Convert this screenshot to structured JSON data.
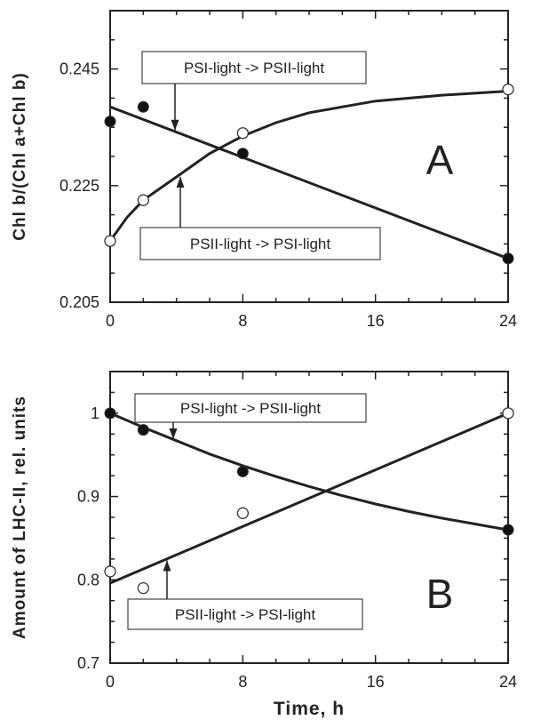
{
  "chart_data": [
    {
      "type": "scatter",
      "panel_label": "A",
      "xlabel": "",
      "ylabel": "Chl b/(Chl a+Chl b)",
      "xlim": [
        0,
        24
      ],
      "ylim": [
        0.205,
        0.255
      ],
      "x_ticks": [
        "0",
        "8",
        "16",
        "24"
      ],
      "y_ticks": [
        "0.205",
        "0.225",
        "0.245"
      ],
      "series": [
        {
          "name": "PSI-light -> PSII-light",
          "marker": "filled",
          "x": [
            0,
            2,
            8,
            24
          ],
          "y": [
            0.236,
            0.2385,
            0.2305,
            0.2125
          ],
          "fit_x": [
            0,
            24
          ],
          "fit_y": [
            0.2385,
            0.2125
          ]
        },
        {
          "name": "PSII-light -> PSI-light",
          "marker": "open",
          "x": [
            0,
            2,
            8,
            24
          ],
          "y": [
            0.2155,
            0.2225,
            0.234,
            0.2415
          ],
          "fit_x": [
            0,
            1,
            2,
            4,
            6,
            8,
            10,
            12,
            16,
            20,
            24
          ],
          "fit_y": [
            0.2155,
            0.2195,
            0.2225,
            0.2265,
            0.2305,
            0.2335,
            0.2358,
            0.2375,
            0.2395,
            0.2405,
            0.2412
          ]
        }
      ],
      "annotations": [
        {
          "text": "PSI-light  ->  PSII-light",
          "points_to_series": 0
        },
        {
          "text": "PSII-light  ->  PSI-light",
          "points_to_series": 1
        }
      ]
    },
    {
      "type": "scatter",
      "panel_label": "B",
      "xlabel": "Time,  h",
      "ylabel": "Amount of LHC-II, rel. units",
      "xlim": [
        0,
        24
      ],
      "ylim": [
        0.7,
        1.05
      ],
      "x_ticks": [
        "0",
        "8",
        "16",
        "24"
      ],
      "y_ticks": [
        "0.7",
        "0.8",
        "0.9",
        "1"
      ],
      "series": [
        {
          "name": "PSI-light -> PSII-light",
          "marker": "filled",
          "x": [
            0,
            2,
            8,
            24
          ],
          "y": [
            1.0,
            0.98,
            0.93,
            0.86
          ],
          "fit_x": [
            0,
            2,
            4,
            6,
            8,
            10,
            12,
            14,
            16,
            18,
            20,
            22,
            24
          ],
          "fit_y": [
            1.0,
            0.983,
            0.967,
            0.951,
            0.937,
            0.924,
            0.912,
            0.901,
            0.891,
            0.882,
            0.874,
            0.867,
            0.86
          ]
        },
        {
          "name": "PSII-light -> PSI-light",
          "marker": "open",
          "x": [
            0,
            2,
            8,
            24
          ],
          "y": [
            0.81,
            0.79,
            0.88,
            1.0
          ],
          "fit_x": [
            0,
            24
          ],
          "fit_y": [
            0.796,
            1.0
          ]
        }
      ],
      "annotations": [
        {
          "text": "PSI-light  ->  PSII-light",
          "points_to_series": 0
        },
        {
          "text": "PSII-light  ->  PSI-light",
          "points_to_series": 1
        }
      ]
    }
  ]
}
